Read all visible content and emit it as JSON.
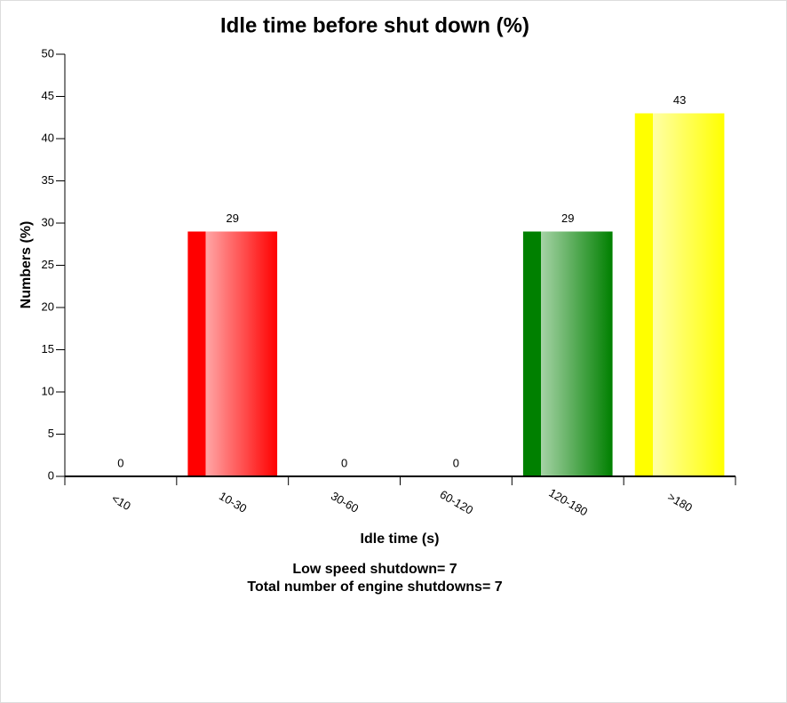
{
  "chart_data": {
    "type": "bar",
    "title": "Idle time before shut down (%)",
    "categories": [
      "<10",
      "10-30",
      "30-60",
      "60-120",
      "120-180",
      ">180"
    ],
    "values": [
      0,
      29,
      0,
      0,
      29,
      43
    ],
    "colors": [
      null,
      "#ff0000",
      null,
      null,
      "#008000",
      "#ffff00"
    ],
    "ylim": [
      0,
      50
    ],
    "yticks": [
      0,
      5,
      10,
      15,
      20,
      25,
      30,
      35,
      40,
      45,
      50
    ],
    "x_label": "Idle time (s)",
    "y_label": "Numbers (%)",
    "annotations": [
      "Low speed shutdown= 7",
      "Total number of engine shutdowns= 7"
    ]
  }
}
